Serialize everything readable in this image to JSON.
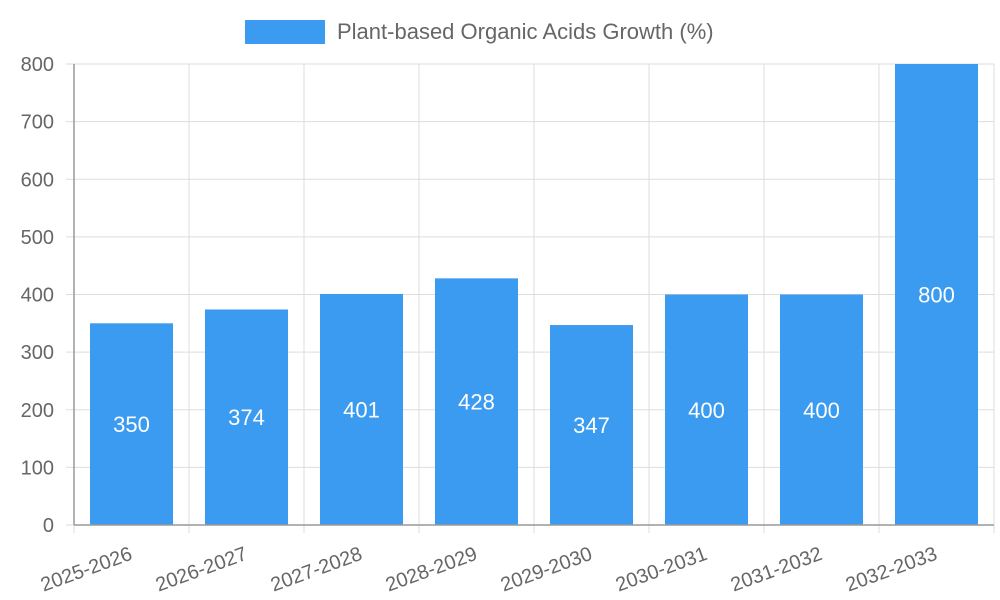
{
  "chart_data": {
    "type": "bar",
    "legend": "Plant-based Organic Acids Growth (%)",
    "categories": [
      "2025-2026",
      "2026-2027",
      "2027-2028",
      "2028-2029",
      "2029-2030",
      "2030-2031",
      "2031-2032",
      "2032-2033"
    ],
    "values": [
      350,
      374,
      401,
      428,
      347,
      400,
      400,
      800
    ],
    "ylim": [
      0,
      800
    ],
    "yticks": [
      0,
      100,
      200,
      300,
      400,
      500,
      600,
      700,
      800
    ],
    "grid": true,
    "legend_position": "top",
    "bar_color": "#3a9bf0"
  }
}
